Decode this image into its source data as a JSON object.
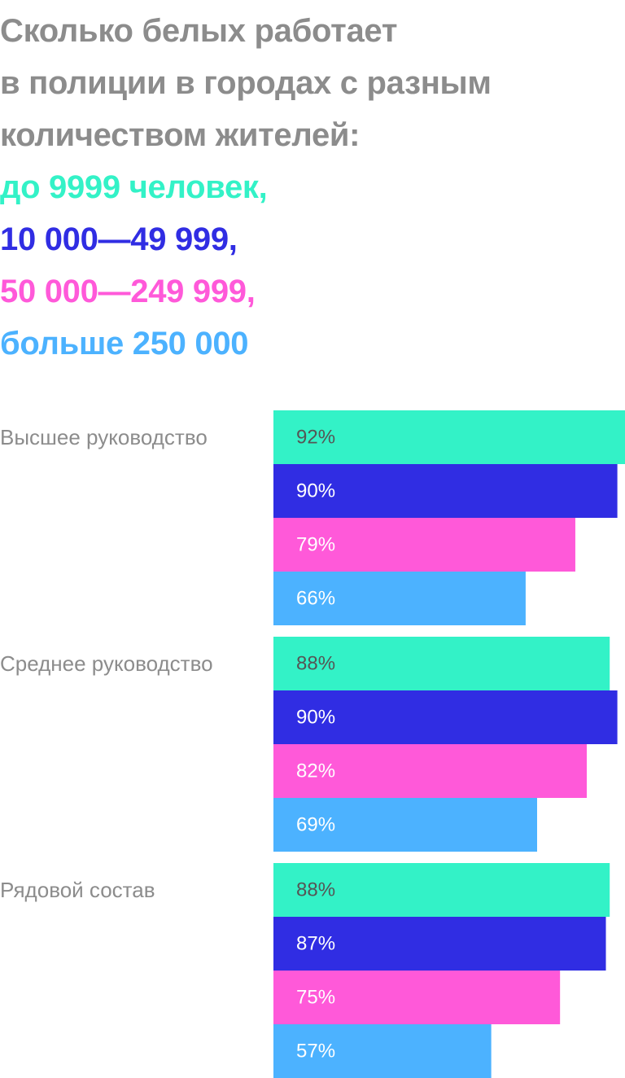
{
  "title": {
    "lines": [
      "Сколько белых работает",
      "в полиции в городах с разным",
      "количеством жителей:"
    ],
    "color": "#8c8c8c"
  },
  "chart_data": {
    "type": "bar",
    "orientation": "horizontal",
    "xlim": [
      0,
      92
    ],
    "grid": false,
    "legend_placement": "top-left",
    "categories": [
      "Высшее руководство",
      "Среднее руководство",
      "Рядовой состав"
    ],
    "series": [
      {
        "name": "до 9999 человек,",
        "color": "#33f2c7",
        "label_color": "#555555",
        "values": [
          92,
          88,
          88
        ],
        "value_labels": [
          "92%",
          "88%",
          "88%"
        ]
      },
      {
        "name": "10 000—49 999,",
        "color": "#302de3",
        "label_color": "#ffffff",
        "values": [
          90,
          90,
          87
        ],
        "value_labels": [
          "90%",
          "90%",
          "87%"
        ]
      },
      {
        "name": "50 000—249 999,",
        "color": "#ff59d9",
        "label_color": "#ffffff",
        "values": [
          79,
          82,
          75
        ],
        "value_labels": [
          "79%",
          "82%",
          "75%"
        ]
      },
      {
        "name": "больше 250 000",
        "color": "#4cb2ff",
        "label_color": "#ffffff",
        "values": [
          66,
          69,
          57
        ],
        "value_labels": [
          "66%",
          "69%",
          "57%"
        ]
      }
    ]
  }
}
